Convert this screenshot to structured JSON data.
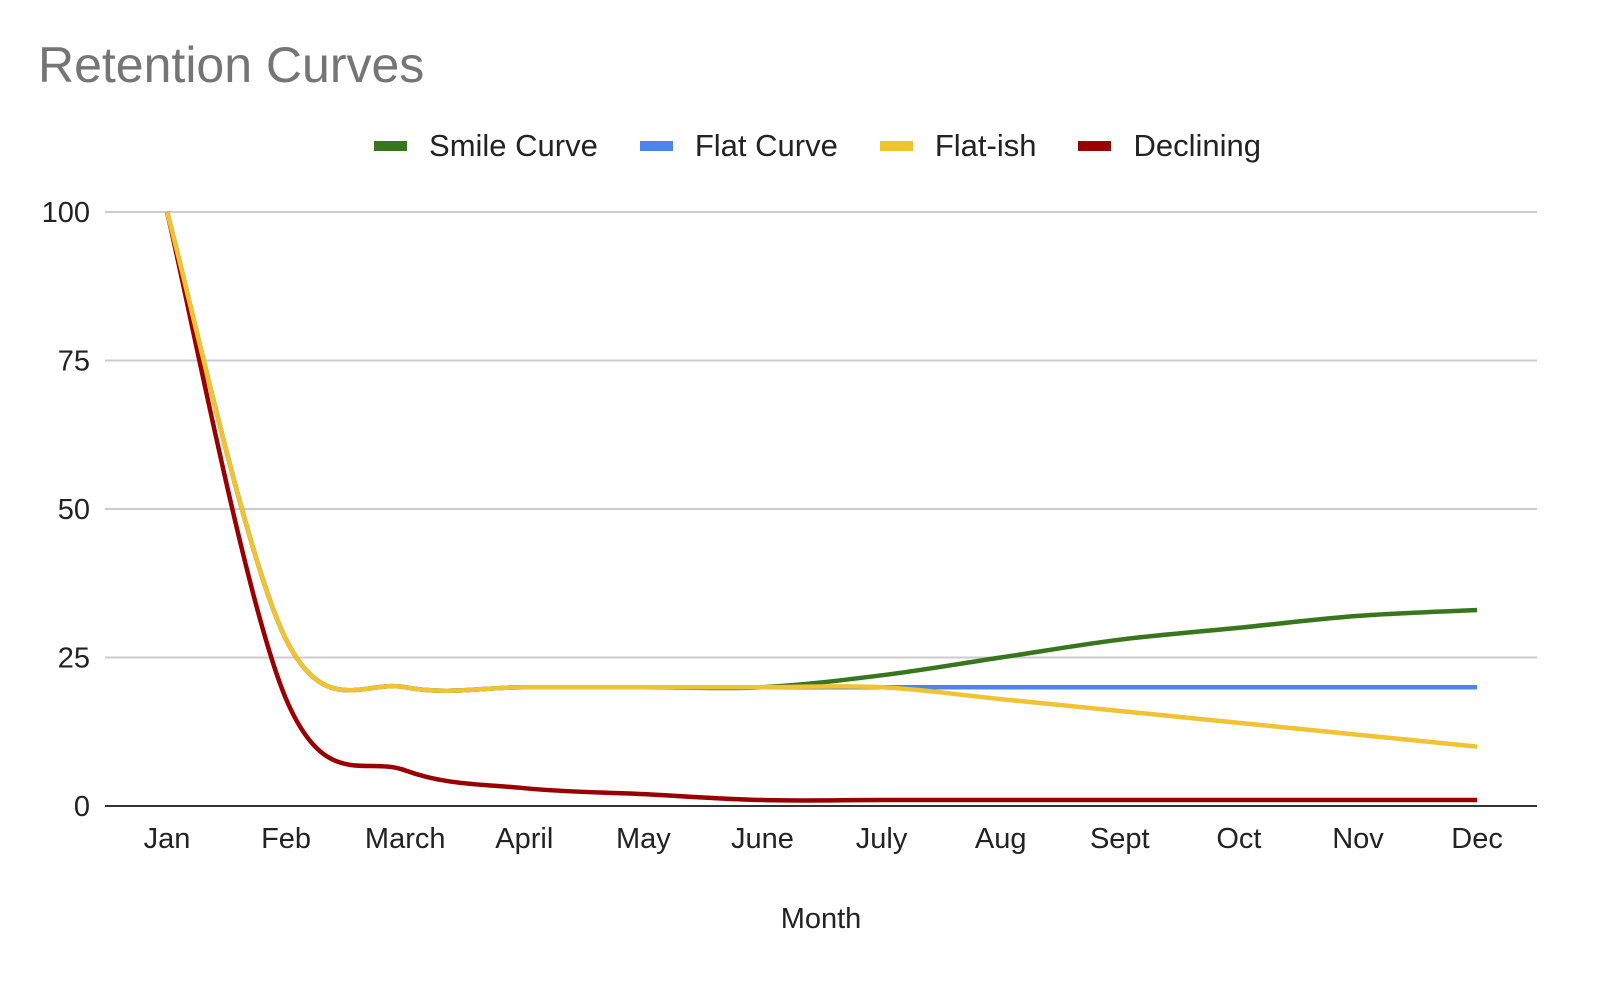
{
  "chart_data": {
    "type": "line",
    "title": "Retention Curves",
    "xlabel": "Month",
    "ylabel": "",
    "categories": [
      "Jan",
      "Feb",
      "March",
      "April",
      "May",
      "June",
      "July",
      "Aug",
      "Sept",
      "Oct",
      "Nov",
      "Dec"
    ],
    "ylim": [
      0,
      100
    ],
    "yticks": [
      0,
      25,
      50,
      75,
      100
    ],
    "grid": true,
    "legend_position": "top",
    "series": [
      {
        "name": "Smile Curve",
        "color": "#38761d",
        "values": [
          100,
          28,
          20,
          20,
          20,
          20,
          22,
          25,
          28,
          30,
          32,
          33
        ]
      },
      {
        "name": "Flat Curve",
        "color": "#4a86e8",
        "values": [
          100,
          28,
          20,
          20,
          20,
          20,
          20,
          20,
          20,
          20,
          20,
          20
        ]
      },
      {
        "name": "Flat-ish",
        "color": "#f1c232",
        "values": [
          100,
          28,
          20,
          20,
          20,
          20,
          20,
          18,
          16,
          14,
          12,
          10
        ]
      },
      {
        "name": "Declining",
        "color": "#990000",
        "values": [
          100,
          18,
          6,
          3,
          2,
          1,
          1,
          1,
          1,
          1,
          1,
          1
        ]
      }
    ]
  }
}
